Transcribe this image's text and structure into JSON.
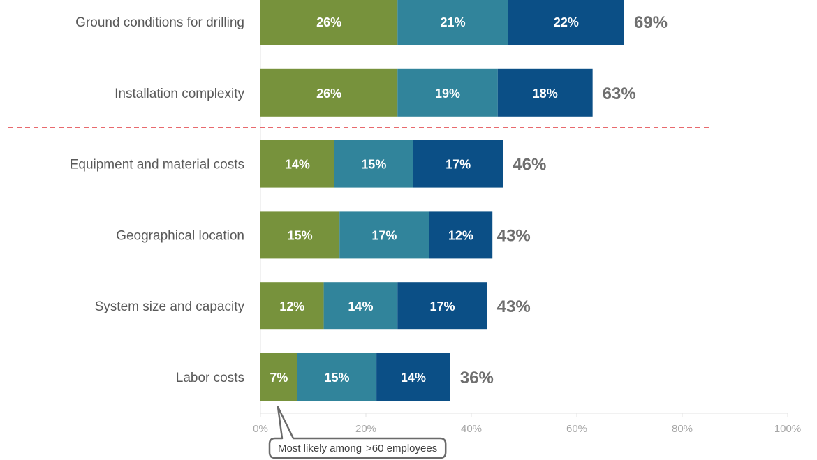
{
  "chart_data": {
    "type": "bar",
    "orientation": "horizontal",
    "stacked": true,
    "categories": [
      "Ground conditions for drilling",
      "Installation complexity",
      "Equipment and material costs",
      "Geographical location",
      "System size and capacity",
      "Labor costs"
    ],
    "series": [
      {
        "values": [
          26,
          26,
          14,
          15,
          12,
          7
        ],
        "color": "#77923c"
      },
      {
        "values": [
          21,
          19,
          15,
          17,
          14,
          15
        ],
        "color": "#31849b"
      },
      {
        "values": [
          22,
          18,
          17,
          12,
          17,
          14
        ],
        "color": "#0b4f86"
      }
    ],
    "totals": [
      69,
      63,
      46,
      43,
      43,
      36
    ],
    "xlim": [
      0,
      100
    ],
    "xticks": [
      "0%",
      "20%",
      "40%",
      "60%",
      "80%",
      "100%"
    ],
    "grid": false,
    "divider_after_category": 1,
    "divider_color": "#e0393e",
    "annotation": {
      "lines": [
        "Most likely  among",
        ">60 employees"
      ],
      "target_category": "Labor costs"
    }
  }
}
